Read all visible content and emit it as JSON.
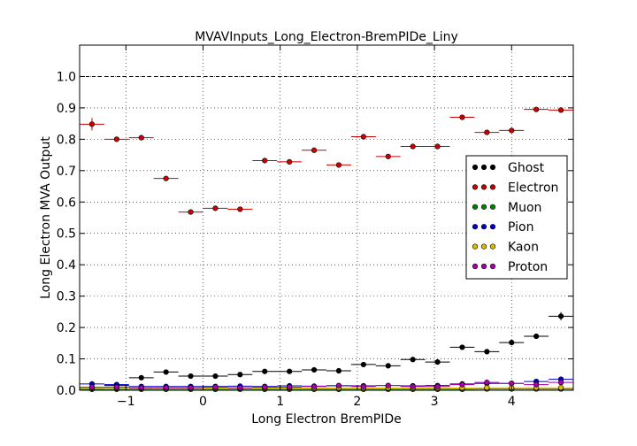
{
  "chart_data": {
    "type": "scatter",
    "title": "MVAVInputs_Long_Electron-BremPIDe_Liny",
    "xlabel": "Long Electron BremPIDe",
    "ylabel": "Long Electron MVA Output",
    "xlim": [
      -1.6,
      4.8
    ],
    "ylim": [
      0.0,
      1.1
    ],
    "xticks": [
      -1,
      0,
      1,
      2,
      3,
      4
    ],
    "xtick_labels": [
      "−1",
      "0",
      "1",
      "2",
      "3",
      "4"
    ],
    "yticks": [
      0.0,
      0.1,
      0.2,
      0.3,
      0.4,
      0.5,
      0.6,
      0.7,
      0.8,
      0.9,
      1.0
    ],
    "ytick_labels": [
      "0.0",
      "0.1",
      "0.2",
      "0.3",
      "0.4",
      "0.5",
      "0.6",
      "0.7",
      "0.8",
      "0.9",
      "1.0"
    ],
    "reference_line": 1.0,
    "grid": true,
    "legend_position": "right",
    "bin_halfwidth": 0.16,
    "x": [
      -1.44,
      -1.12,
      -0.8,
      -0.48,
      -0.16,
      0.16,
      0.48,
      0.8,
      1.12,
      1.44,
      1.76,
      2.08,
      2.4,
      2.72,
      3.04,
      3.36,
      3.68,
      4.0,
      4.32,
      4.64
    ],
    "series": [
      {
        "name": "Ghost",
        "color": "#000000",
        "values": [
          0.005,
          0.015,
          0.04,
          0.058,
          0.045,
          0.045,
          0.05,
          0.06,
          0.06,
          0.065,
          0.062,
          0.082,
          0.078,
          0.098,
          0.09,
          0.137,
          0.123,
          0.152,
          0.172,
          0.236
        ],
        "errors": [
          0.003,
          0.004,
          0.004,
          0.004,
          0.003,
          0.003,
          0.003,
          0.003,
          0.003,
          0.003,
          0.003,
          0.004,
          0.004,
          0.004,
          0.004,
          0.005,
          0.005,
          0.006,
          0.006,
          0.013
        ]
      },
      {
        "name": "Electron",
        "color": "#cc0000",
        "values": [
          0.848,
          0.8,
          0.805,
          0.675,
          0.568,
          0.58,
          0.577,
          0.732,
          0.728,
          0.765,
          0.718,
          0.808,
          0.745,
          0.777,
          0.777,
          0.87,
          0.822,
          0.828,
          0.895,
          0.893
        ],
        "errors": [
          0.02,
          0.008,
          0.006,
          0.005,
          0.004,
          0.004,
          0.004,
          0.004,
          0.004,
          0.004,
          0.004,
          0.004,
          0.004,
          0.004,
          0.004,
          0.004,
          0.004,
          0.004,
          0.004,
          0.005
        ]
      },
      {
        "name": "Muon",
        "color": "#008000",
        "values": [
          0.003,
          0.003,
          0.003,
          0.003,
          0.003,
          0.003,
          0.003,
          0.003,
          0.003,
          0.003,
          0.003,
          0.003,
          0.003,
          0.003,
          0.003,
          0.003,
          0.004,
          0.004,
          0.004,
          0.004
        ],
        "errors": [
          0.001,
          0.001,
          0.001,
          0.001,
          0.001,
          0.001,
          0.001,
          0.001,
          0.001,
          0.001,
          0.001,
          0.001,
          0.001,
          0.001,
          0.001,
          0.001,
          0.001,
          0.001,
          0.001,
          0.001
        ]
      },
      {
        "name": "Pion",
        "color": "#0000cc",
        "values": [
          0.02,
          0.018,
          0.012,
          0.012,
          0.012,
          0.012,
          0.013,
          0.012,
          0.014,
          0.013,
          0.014,
          0.014,
          0.015,
          0.014,
          0.015,
          0.02,
          0.022,
          0.022,
          0.028,
          0.035
        ],
        "errors": [
          0.002,
          0.002,
          0.002,
          0.002,
          0.002,
          0.002,
          0.002,
          0.002,
          0.002,
          0.002,
          0.002,
          0.002,
          0.002,
          0.002,
          0.002,
          0.002,
          0.002,
          0.002,
          0.002,
          0.003
        ]
      },
      {
        "name": "Kaon",
        "color": "#ddbb00",
        "values": [
          0.006,
          0.006,
          0.006,
          0.007,
          0.007,
          0.007,
          0.007,
          0.007,
          0.007,
          0.007,
          0.007,
          0.007,
          0.007,
          0.007,
          0.007,
          0.007,
          0.008,
          0.008,
          0.008,
          0.008
        ],
        "errors": [
          0.001,
          0.001,
          0.001,
          0.001,
          0.001,
          0.001,
          0.001,
          0.001,
          0.001,
          0.001,
          0.001,
          0.001,
          0.001,
          0.001,
          0.001,
          0.001,
          0.001,
          0.001,
          0.001,
          0.001
        ]
      },
      {
        "name": "Proton",
        "color": "#aa00aa",
        "values": [
          0.01,
          0.01,
          0.008,
          0.008,
          0.008,
          0.01,
          0.008,
          0.01,
          0.01,
          0.012,
          0.015,
          0.012,
          0.015,
          0.012,
          0.012,
          0.018,
          0.025,
          0.022,
          0.018,
          0.025
        ],
        "errors": [
          0.002,
          0.002,
          0.002,
          0.002,
          0.002,
          0.002,
          0.002,
          0.002,
          0.002,
          0.002,
          0.002,
          0.002,
          0.002,
          0.002,
          0.002,
          0.002,
          0.002,
          0.002,
          0.002,
          0.002
        ]
      }
    ]
  }
}
